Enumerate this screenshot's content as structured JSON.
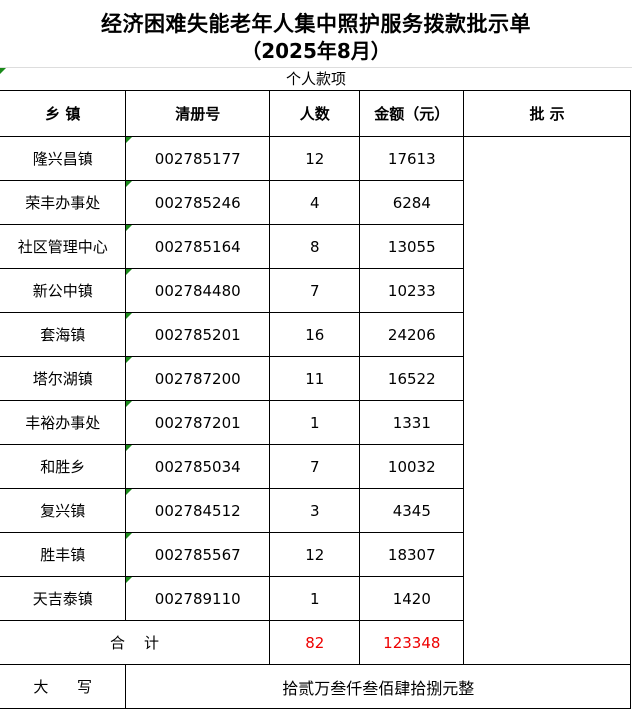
{
  "title": "经济困难失能老年人集中照护服务拨款批示单",
  "subtitle": "（2025年8月）",
  "section": "个人款项",
  "headers": [
    "乡  镇",
    "清册号",
    "人数",
    "金额（元）",
    "批      示"
  ],
  "rows": [
    {
      "town": "隆兴昌镇",
      "id": "002785177",
      "count": "12",
      "amount": "17613"
    },
    {
      "town": "荣丰办事处",
      "id": "002785246",
      "count": "4",
      "amount": "6284"
    },
    {
      "town": "社区管理中心",
      "id": "002785164",
      "count": "8",
      "amount": "13055"
    },
    {
      "town": "新公中镇",
      "id": "002784480",
      "count": "7",
      "amount": "10233"
    },
    {
      "town": "套海镇",
      "id": "002785201",
      "count": "16",
      "amount": "24206"
    },
    {
      "town": "塔尔湖镇",
      "id": "002787200",
      "count": "11",
      "amount": "16522"
    },
    {
      "town": "丰裕办事处",
      "id": "002787201",
      "count": "1",
      "amount": "1331"
    },
    {
      "town": "和胜乡",
      "id": "002785034",
      "count": "7",
      "amount": "10032"
    },
    {
      "town": "复兴镇",
      "id": "002784512",
      "count": "3",
      "amount": "4345"
    },
    {
      "town": "胜丰镇",
      "id": "002785567",
      "count": "12",
      "amount": "18307"
    },
    {
      "town": "天吉泰镇",
      "id": "002789110",
      "count": "1",
      "amount": "1420"
    }
  ],
  "total": {
    "label": "合    计",
    "count": "82",
    "amount": "123348"
  },
  "capital": {
    "label": "大      写",
    "value": "拾贰万叁仟叁佰肆拾捌元整"
  },
  "colors": {
    "total_text": "#ee0000",
    "marker": "#1a8a1a"
  }
}
